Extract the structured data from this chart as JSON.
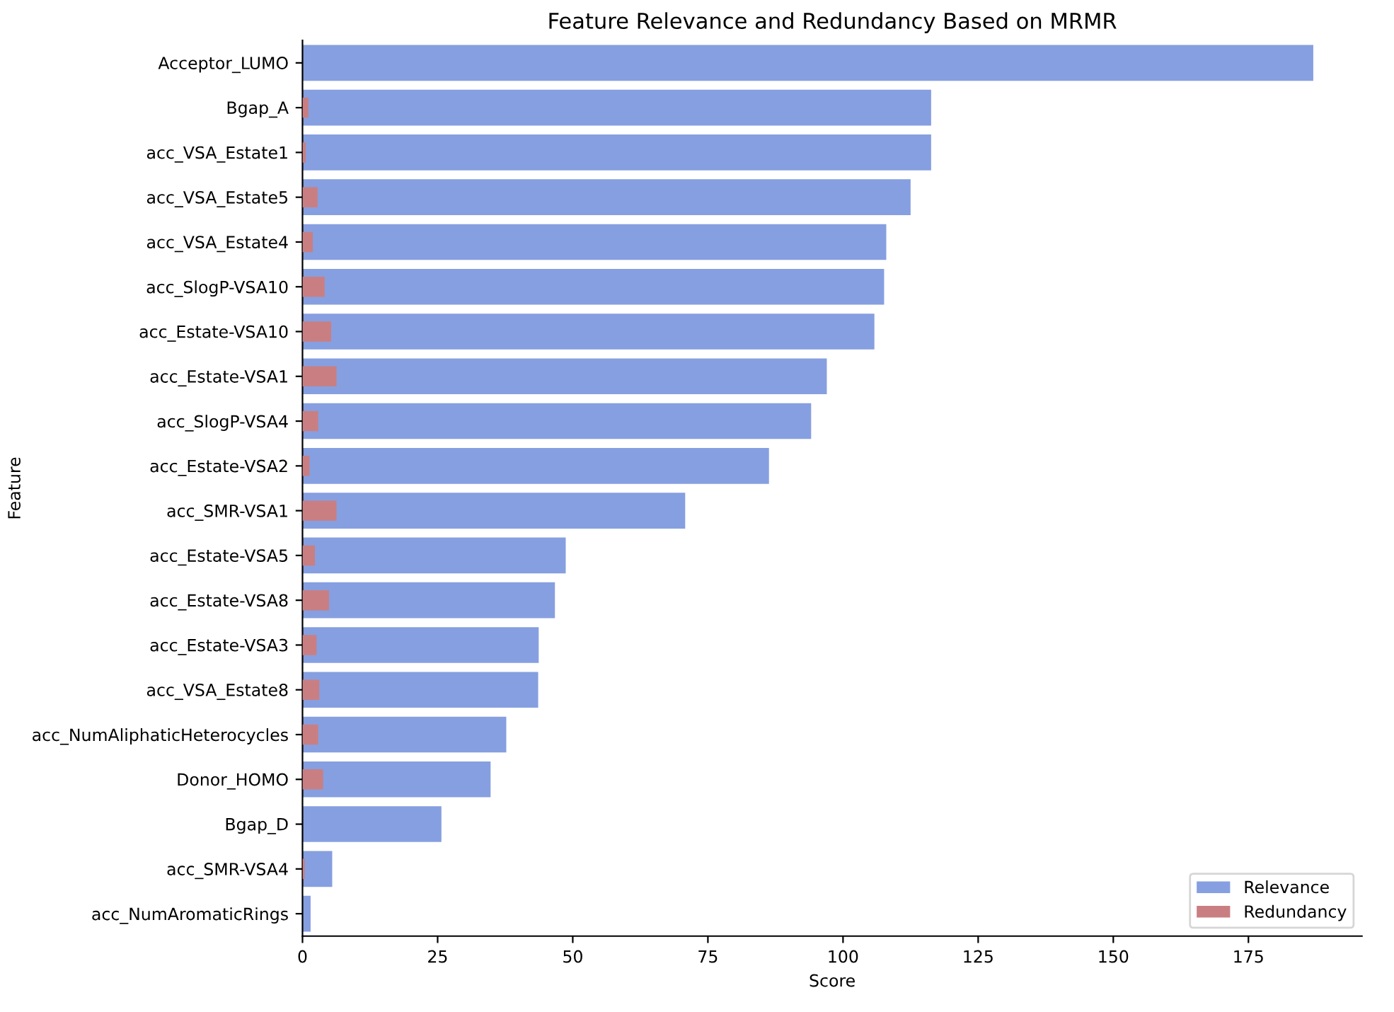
{
  "chart_data": {
    "type": "bar",
    "orientation": "horizontal",
    "title": "Feature Relevance and Redundancy Based on MRMR",
    "xlabel": "Score",
    "ylabel": "Feature",
    "categories": [
      "Acceptor_LUMO",
      "Bgap_A",
      "acc_VSA_Estate1",
      "acc_VSA_Estate5",
      "acc_VSA_Estate4",
      "acc_SlogP-VSA10",
      "acc_Estate-VSA10",
      "acc_Estate-VSA1",
      "acc_SlogP-VSA4",
      "acc_Estate-VSA2",
      "acc_SMR-VSA1",
      "acc_Estate-VSA5",
      "acc_Estate-VSA8",
      "acc_Estate-VSA3",
      "acc_VSA_Estate8",
      "acc_NumAliphaticHeterocycles",
      "Donor_HOMO",
      "Bgap_D",
      "acc_SMR-VSA4",
      "acc_NumAromaticRings"
    ],
    "series": [
      {
        "name": "Relevance",
        "color": "#869fe0",
        "values": [
          187.0,
          116.3,
          116.3,
          112.5,
          108.0,
          107.6,
          105.8,
          97.0,
          94.1,
          86.3,
          70.8,
          48.7,
          46.7,
          43.7,
          43.6,
          37.7,
          34.8,
          25.7,
          5.5,
          1.5
        ]
      },
      {
        "name": "Redundancy",
        "color": "#c97f82",
        "values": [
          0,
          1.1,
          0.6,
          2.8,
          1.9,
          4.1,
          5.3,
          6.3,
          2.9,
          1.3,
          6.3,
          2.3,
          4.9,
          2.6,
          3.1,
          2.9,
          3.8,
          0,
          0.4,
          0
        ]
      }
    ],
    "xlim": [
      0,
      196
    ],
    "xticks": [
      0,
      25,
      50,
      75,
      100,
      125,
      150,
      175
    ],
    "grid": false,
    "legend": "bottom right"
  }
}
